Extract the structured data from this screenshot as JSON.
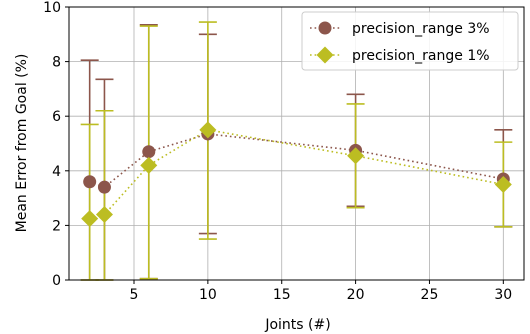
{
  "chart_data": {
    "type": "line",
    "title": "",
    "xlabel": "Joints (#)",
    "ylabel": "Mean Error from Goal (%)",
    "xlim": [
      0.6,
      31.4
    ],
    "ylim": [
      0,
      10
    ],
    "xticks": [
      5,
      10,
      15,
      20,
      25,
      30
    ],
    "yticks": [
      0,
      2,
      4,
      6,
      8,
      10
    ],
    "grid": true,
    "legend_position": "top-right",
    "series": [
      {
        "name": "precision_range 3%",
        "color": "#8c564b",
        "marker": "circle",
        "linestyle": "dotted",
        "x": [
          2,
          3,
          6,
          10,
          20,
          30
        ],
        "y": [
          3.6,
          3.4,
          4.7,
          5.35,
          4.75,
          3.7
        ],
        "err_low": [
          0,
          0,
          0.05,
          1.7,
          2.7,
          1.95
        ],
        "err_high": [
          8.05,
          7.35,
          9.35,
          9.0,
          6.8,
          5.5
        ]
      },
      {
        "name": "precision_range 1%",
        "color": "#bcbd22",
        "marker": "diamond",
        "linestyle": "dotted",
        "x": [
          2,
          3,
          6,
          10,
          20,
          30
        ],
        "y": [
          2.25,
          2.4,
          4.2,
          5.5,
          4.55,
          3.5
        ],
        "err_low": [
          0,
          0,
          0.05,
          1.5,
          2.65,
          1.95
        ],
        "err_high": [
          5.7,
          6.2,
          9.3,
          9.45,
          6.45,
          5.05
        ]
      }
    ]
  }
}
